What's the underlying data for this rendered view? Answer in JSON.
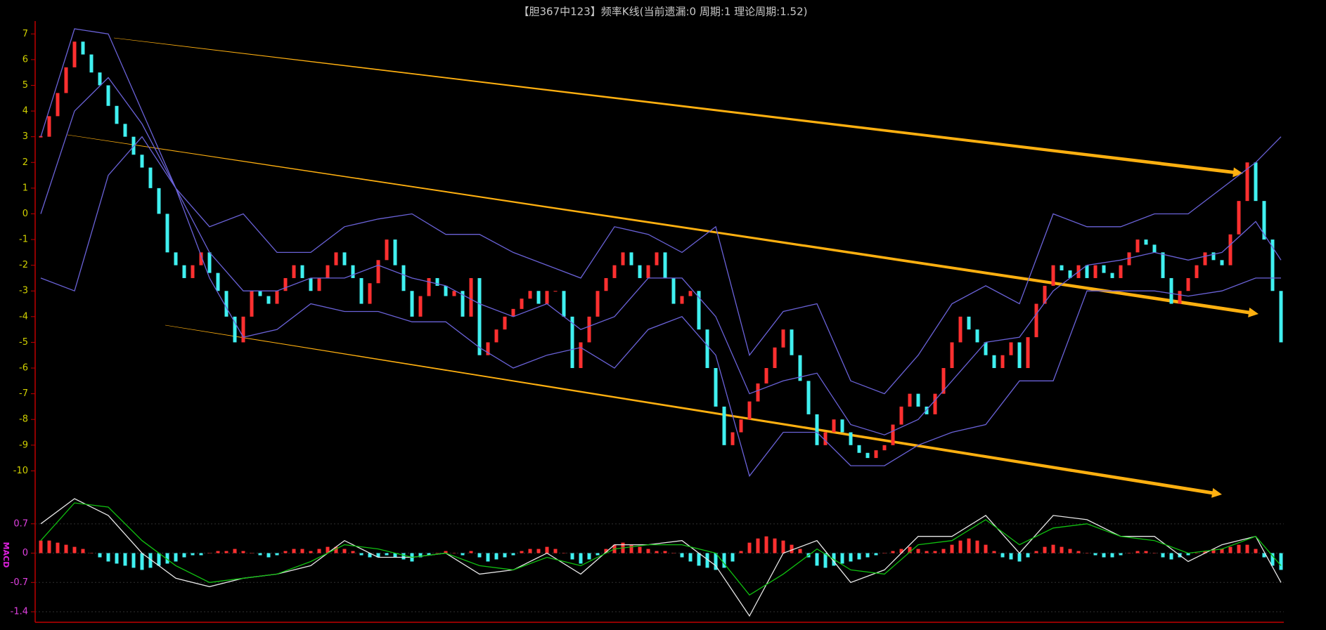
{
  "chart_data": [
    {
      "type": "candlestick",
      "title": "【胆367中123】频率K线(当前遗漏:0 周期:1 理论周期:1.52)",
      "values": [
        3,
        3.8,
        4.7,
        5.7,
        6.7,
        6.2,
        5.5,
        5,
        4.2,
        3.5,
        3,
        2.3,
        1.8,
        1,
        0,
        -1.5,
        -2,
        -2.5,
        -2,
        -1.5,
        -2.3,
        -3,
        -4,
        -5,
        -4,
        -3,
        -3.2,
        -3.5,
        -3,
        -2.5,
        -2,
        -2.5,
        -3,
        -2.5,
        -2,
        -1.5,
        -2,
        -2.5,
        -3.5,
        -2.7,
        -1.8,
        -1,
        -2,
        -3,
        -4,
        -3.2,
        -2.5,
        -2.8,
        -3.2,
        -3,
        -4,
        -2.5,
        -5.5,
        -5,
        -4.5,
        -4,
        -3.7,
        -3.3,
        -3,
        -3.5,
        -3,
        -3,
        -4,
        -6,
        -5,
        -4,
        -3,
        -2.5,
        -2,
        -1.5,
        -2,
        -2.5,
        -2,
        -1.5,
        -2.5,
        -3.5,
        -3.2,
        -3,
        -4.5,
        -6,
        -7.5,
        -9,
        -8.5,
        -8,
        -7.3,
        -6.6,
        -6,
        -5.2,
        -4.5,
        -5.5,
        -6.5,
        -7.8,
        -9,
        -8.5,
        -8,
        -8.5,
        -9,
        -9.3,
        -9.5,
        -9.2,
        -9,
        -8.2,
        -7.5,
        -7,
        -7.5,
        -7.8,
        -7,
        -6,
        -5,
        -4,
        -4.5,
        -5,
        -5.5,
        -6,
        -5.5,
        -5,
        -6,
        -4.8,
        -3.5,
        -2.8,
        -2,
        -2.2,
        -2.5,
        -2,
        -2.5,
        -2,
        -2.3,
        -2.5,
        -2,
        -1.5,
        -1,
        -1.2,
        -1.5,
        -2.5,
        -3.5,
        -3,
        -2.5,
        -2,
        -1.5,
        -1.8,
        -2,
        -0.8,
        0.5,
        2,
        0.5,
        -1,
        -3,
        -5
      ],
      "up_color": "#ff3030",
      "down_color": "#40f0f0",
      "ylim": [
        -11,
        7.5
      ],
      "yticks": [
        7,
        6,
        5,
        4,
        3,
        2,
        1,
        0,
        -1,
        -2,
        -3,
        -4,
        -5,
        -6,
        -7,
        -8,
        -9,
        -10
      ],
      "series": [
        {
          "color": "#6a62d8",
          "x": [
            0,
            4,
            8,
            12,
            16,
            20,
            24,
            28,
            32,
            36,
            40,
            44,
            48,
            52,
            56,
            60,
            64,
            68,
            72,
            76,
            80,
            84,
            88,
            92,
            96,
            100,
            104,
            108,
            112,
            116,
            120,
            124,
            128,
            132,
            136,
            140,
            144,
            147
          ],
          "values": [
            3,
            7.2,
            7,
            4,
            1,
            -0.5,
            0,
            -1.5,
            -1.5,
            -0.5,
            -0.2,
            0,
            -0.8,
            -0.8,
            -1.5,
            -2,
            -2.5,
            -0.5,
            -0.8,
            -1.5,
            -0.5,
            -5.5,
            -3.8,
            -3.5,
            -6.5,
            -7,
            -5.5,
            -3.5,
            -2.8,
            -3.5,
            0,
            -0.5,
            -0.5,
            0,
            0,
            1,
            2,
            3
          ]
        },
        {
          "color": "#6a62d8",
          "x": [
            0,
            4,
            8,
            12,
            16,
            20,
            24,
            28,
            32,
            36,
            40,
            44,
            48,
            52,
            56,
            60,
            64,
            68,
            72,
            76,
            80,
            84,
            88,
            92,
            96,
            100,
            104,
            108,
            112,
            116,
            120,
            124,
            128,
            132,
            136,
            140,
            144,
            147
          ],
          "values": [
            0,
            4,
            5.3,
            3.5,
            1,
            -1.5,
            -3,
            -3,
            -2.5,
            -2.5,
            -2,
            -2.5,
            -2.8,
            -3.5,
            -4,
            -3.5,
            -4.5,
            -4,
            -2.5,
            -2.5,
            -4,
            -7,
            -6.5,
            -6.2,
            -8.2,
            -8.6,
            -8,
            -6.5,
            -5,
            -4.8,
            -3,
            -2,
            -1.8,
            -1.5,
            -1.8,
            -1.5,
            -0.3,
            -1.8
          ]
        },
        {
          "color": "#6a62d8",
          "x": [
            0,
            4,
            8,
            12,
            16,
            20,
            24,
            28,
            32,
            36,
            40,
            44,
            48,
            52,
            56,
            60,
            64,
            68,
            72,
            76,
            80,
            84,
            88,
            92,
            96,
            100,
            104,
            108,
            112,
            116,
            120,
            124,
            128,
            132,
            136,
            140,
            144,
            147
          ],
          "values": [
            -2.5,
            -3,
            1.5,
            3,
            1,
            -2.5,
            -4.8,
            -4.5,
            -3.5,
            -3.8,
            -3.8,
            -4.2,
            -4.2,
            -5.2,
            -6,
            -5.5,
            -5.2,
            -6,
            -4.5,
            -4,
            -5.5,
            -10.2,
            -8.5,
            -8.5,
            -9.8,
            -9.8,
            -9,
            -8.5,
            -8.2,
            -6.5,
            -6.5,
            -3,
            -3,
            -3,
            -3.2,
            -3,
            -2.5,
            -2.5
          ]
        }
      ]
    },
    {
      "type": "macd",
      "ylabel": "MACD",
      "values": [
        0.3,
        0.3,
        0.25,
        0.2,
        0.15,
        0.1,
        0,
        -0.1,
        -0.2,
        -0.25,
        -0.3,
        -0.35,
        -0.4,
        -0.35,
        -0.3,
        -0.25,
        -0.2,
        -0.1,
        -0.05,
        -0.05,
        0,
        0.05,
        0.05,
        0.1,
        0.05,
        0,
        -0.05,
        -0.1,
        -0.05,
        0.05,
        0.1,
        0.1,
        0.05,
        0.1,
        0.15,
        0.15,
        0.1,
        0.05,
        -0.05,
        -0.1,
        -0.1,
        -0.05,
        -0.1,
        -0.15,
        -0.2,
        -0.1,
        -0.05,
        0,
        0.05,
        0,
        -0.05,
        0.05,
        -0.1,
        -0.2,
        -0.15,
        -0.1,
        -0.05,
        0.05,
        0.1,
        0.1,
        0.15,
        0.1,
        0,
        -0.15,
        -0.25,
        -0.15,
        -0.05,
        0.1,
        0.2,
        0.25,
        0.2,
        0.15,
        0.1,
        0.05,
        0.05,
        0,
        -0.1,
        -0.2,
        -0.3,
        -0.35,
        -0.4,
        -0.35,
        -0.2,
        0.05,
        0.25,
        0.35,
        0.4,
        0.35,
        0.3,
        0.2,
        0.1,
        -0.1,
        -0.3,
        -0.35,
        -0.3,
        -0.25,
        -0.2,
        -0.15,
        -0.1,
        -0.05,
        0,
        0.05,
        0.1,
        0.15,
        0.1,
        0.05,
        0.05,
        0.1,
        0.2,
        0.3,
        0.35,
        0.3,
        0.2,
        0.05,
        -0.1,
        -0.15,
        -0.2,
        -0.1,
        0.05,
        0.15,
        0.2,
        0.15,
        0.1,
        0.05,
        0,
        -0.05,
        -0.1,
        -0.1,
        -0.05,
        0,
        0.05,
        0.05,
        0,
        -0.1,
        -0.15,
        -0.1,
        -0.05,
        0,
        0.05,
        0.1,
        0.1,
        0.15,
        0.2,
        0.2,
        0.1,
        -0.1,
        -0.3,
        -0.4
      ],
      "up_color": "#ff3030",
      "down_color": "#40f0f0",
      "ylim": [
        -1.5,
        1.2
      ],
      "yticks": [
        0.7,
        0,
        -0.7,
        -1.4
      ],
      "grid": true,
      "series": [
        {
          "color": "#e8e8e8",
          "x": [
            0,
            4,
            8,
            12,
            16,
            20,
            24,
            28,
            32,
            36,
            40,
            44,
            48,
            52,
            56,
            60,
            64,
            68,
            72,
            76,
            80,
            84,
            88,
            92,
            96,
            100,
            104,
            108,
            112,
            116,
            120,
            124,
            128,
            132,
            136,
            140,
            144,
            147
          ],
          "values": [
            0.7,
            1.3,
            0.9,
            0,
            -0.6,
            -0.8,
            -0.6,
            -0.5,
            -0.3,
            0.3,
            -0.1,
            -0.1,
            0,
            -0.5,
            -0.4,
            0,
            -0.5,
            0.2,
            0.2,
            0.3,
            -0.3,
            -1.5,
            0,
            0.3,
            -0.7,
            -0.4,
            0.4,
            0.4,
            0.9,
            0,
            0.9,
            0.8,
            0.4,
            0.4,
            -0.2,
            0.2,
            0.4,
            -0.7
          ]
        },
        {
          "color": "#10c010",
          "x": [
            0,
            4,
            8,
            12,
            16,
            20,
            24,
            28,
            32,
            36,
            40,
            44,
            48,
            52,
            56,
            60,
            64,
            68,
            72,
            76,
            80,
            84,
            88,
            92,
            96,
            100,
            104,
            108,
            112,
            116,
            120,
            124,
            128,
            132,
            136,
            140,
            144,
            147
          ],
          "values": [
            0.3,
            1.2,
            1.1,
            0.3,
            -0.3,
            -0.7,
            -0.6,
            -0.5,
            -0.2,
            0.2,
            0.1,
            -0.1,
            0,
            -0.3,
            -0.4,
            -0.1,
            -0.3,
            0.1,
            0.2,
            0.2,
            0,
            -1,
            -0.5,
            0.1,
            -0.4,
            -0.5,
            0.2,
            0.3,
            0.8,
            0.2,
            0.6,
            0.7,
            0.4,
            0.3,
            0,
            0.1,
            0.4,
            -0.3
          ]
        }
      ]
    }
  ]
}
